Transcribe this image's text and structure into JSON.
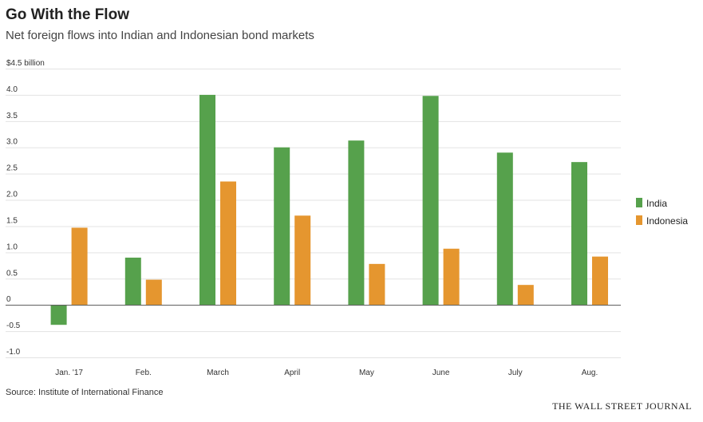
{
  "header": {
    "title": "Go With the Flow",
    "subtitle": "Net foreign flows into Indian and Indonesian bond markets"
  },
  "footer": {
    "source": "Source: Institute of International Finance",
    "brand": "THE WALL STREET JOURNAL"
  },
  "chart_data": {
    "type": "bar",
    "title": "Go With the Flow",
    "subtitle": "Net foreign flows into Indian and Indonesian bond markets",
    "ylabel": "$ billion",
    "ylim": [
      -1.0,
      4.5
    ],
    "grid": true,
    "legend_position": "right",
    "categories": [
      "Jan. '17",
      "Feb.",
      "March",
      "April",
      "May",
      "June",
      "July",
      "Aug."
    ],
    "yticks": [
      {
        "value": 4.5,
        "label": "$4.5 billion"
      },
      {
        "value": 4.0,
        "label": "4.0"
      },
      {
        "value": 3.5,
        "label": "3.5"
      },
      {
        "value": 3.0,
        "label": "3.0"
      },
      {
        "value": 2.5,
        "label": "2.5"
      },
      {
        "value": 2.0,
        "label": "2.0"
      },
      {
        "value": 1.5,
        "label": "1.5"
      },
      {
        "value": 1.0,
        "label": "1.0"
      },
      {
        "value": 0.5,
        "label": "0.5"
      },
      {
        "value": 0,
        "label": "0"
      },
      {
        "value": -0.5,
        "label": "-0.5"
      },
      {
        "value": -1.0,
        "label": "-1.0"
      }
    ],
    "series": [
      {
        "name": "India",
        "color": "#56a14c",
        "values": [
          -0.38,
          0.9,
          4.0,
          3.0,
          3.13,
          3.98,
          2.9,
          2.72
        ]
      },
      {
        "name": "Indonesia",
        "color": "#e5962f",
        "values": [
          1.47,
          0.48,
          2.35,
          1.7,
          0.78,
          1.07,
          0.38,
          0.92
        ]
      }
    ]
  }
}
